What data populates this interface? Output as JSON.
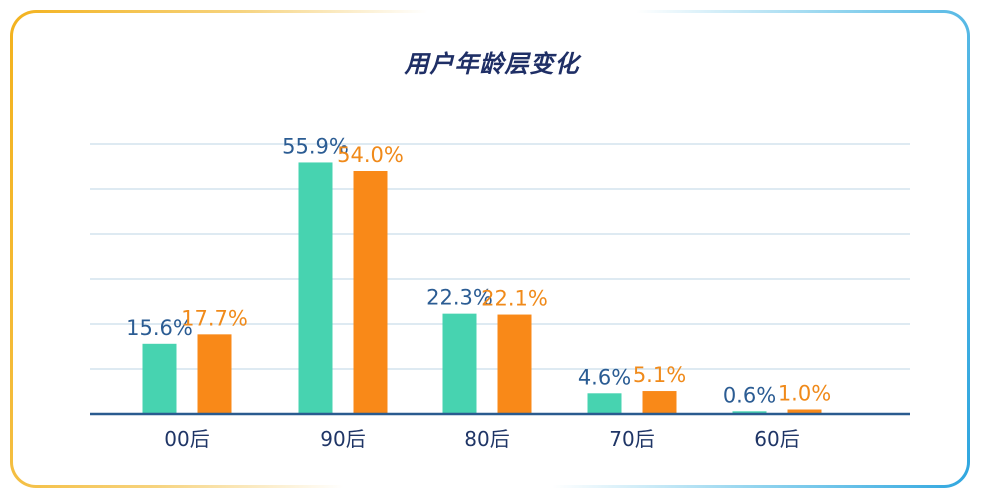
{
  "chart_data": {
    "type": "bar",
    "title": "用户年龄层变化",
    "categories": [
      "00后",
      "90后",
      "80后",
      "70后",
      "60后"
    ],
    "series": [
      {
        "values": [
          15.6,
          55.9,
          22.3,
          4.6,
          0.6
        ],
        "labels": [
          "15.6%",
          "55.9%",
          "22.3%",
          "4.6%",
          "0.6%"
        ],
        "color": "#47d3b0",
        "label_color": "#2b5c93"
      },
      {
        "values": [
          17.7,
          54.0,
          22.1,
          5.1,
          1.0
        ],
        "labels": [
          "17.7%",
          "54.0%",
          "22.1%",
          "5.1%",
          "1.0%"
        ],
        "color": "#f98918",
        "label_color": "#f08a1a"
      }
    ],
    "ylim": [
      0,
      60
    ],
    "grid": true,
    "legend": "none"
  },
  "colors": {
    "gridline": "#c9ddea",
    "baseline": "#2a5b8f"
  }
}
